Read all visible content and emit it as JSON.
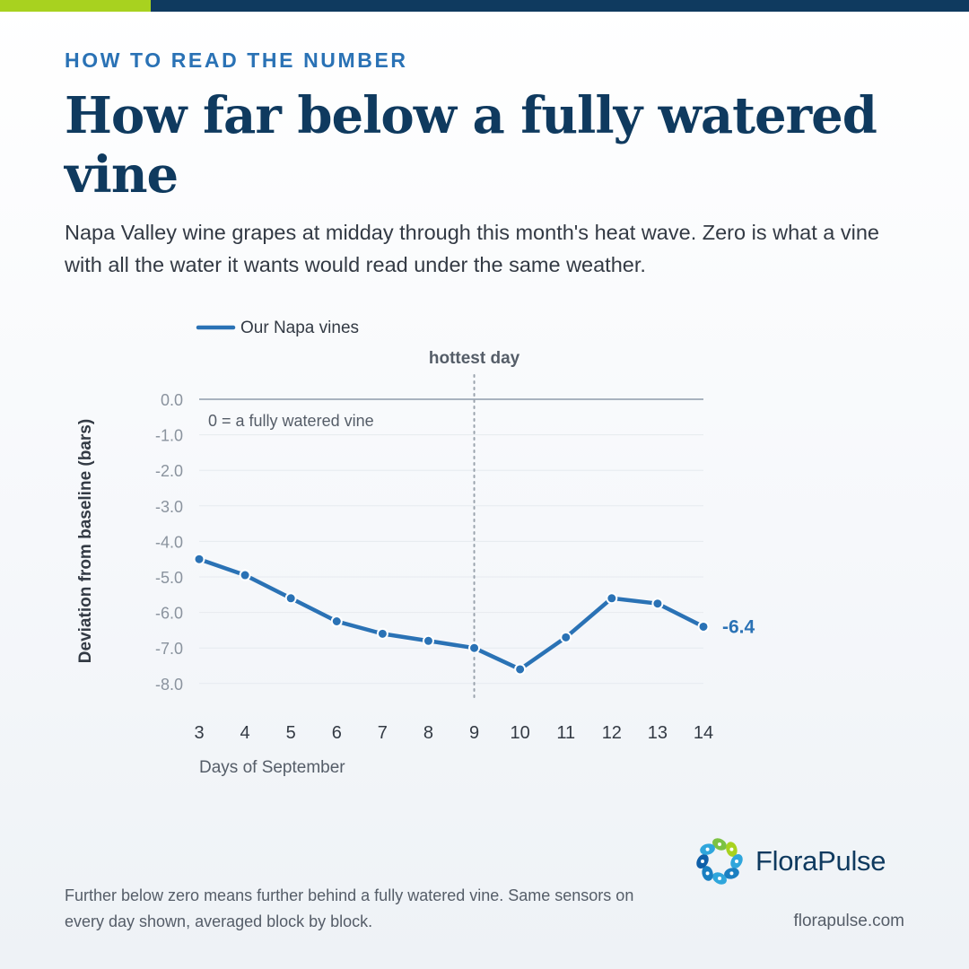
{
  "colors": {
    "accent_green": "#a8d21f",
    "navy": "#0f3a5f",
    "blue": "#2a72b5",
    "eyebrow_blue": "#2a72b5"
  },
  "eyebrow": "HOW TO READ THE NUMBER",
  "headline": "How far below a fully watered vine",
  "subhead": "Napa Valley wine grapes at midday through this month's heat wave. Zero is what a vine with all the water it wants would read under the same weather.",
  "footnote": "Further below zero means further behind a fully watered vine. Same sensors on every day shown, averaged block by block.",
  "brand": {
    "name": "FloraPulse",
    "site": "florapulse.com",
    "logo_icon": "florapulse-logo-icon"
  },
  "chart_data": {
    "type": "line",
    "title": "",
    "xlabel": "Days of September",
    "ylabel": "Deviation from baseline (bars)",
    "ylim": [
      -8.7,
      0
    ],
    "yticks": [
      0,
      -1,
      -2,
      -3,
      -4,
      -5,
      -6,
      -7,
      -8
    ],
    "ytick_labels": [
      "0.0",
      "-1.0",
      "-2.0",
      "-3.0",
      "-4.0",
      "-5.0",
      "-6.0",
      "-7.0",
      "-8.0"
    ],
    "x": [
      3,
      4,
      5,
      6,
      7,
      8,
      9,
      10,
      11,
      12,
      13,
      14
    ],
    "x_labels": [
      "3",
      "4",
      "5",
      "6",
      "7",
      "8",
      "9",
      "10",
      "11",
      "12",
      "13",
      "14"
    ],
    "series": [
      {
        "name": "Our Napa vines",
        "values": [
          -4.5,
          -4.95,
          -5.6,
          -6.25,
          -6.6,
          -6.8,
          -7.0,
          -7.6,
          -6.7,
          -5.6,
          -5.75,
          -6.4
        ],
        "color": "#2a72b5"
      }
    ],
    "end_label": "-6.4",
    "baseline": {
      "y": 0,
      "label": "0 = a fully watered vine"
    },
    "annotation": {
      "x": 9,
      "label": "hottest day"
    },
    "legend": "top-left",
    "grid": true
  }
}
